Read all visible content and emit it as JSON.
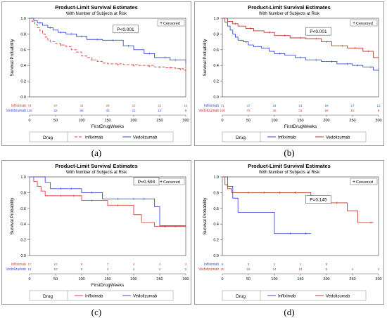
{
  "chart_data": [
    {
      "panel": "a",
      "caption": "(a)",
      "type": "line",
      "title": "Product-Limit Survival Estimates",
      "subtitle": "With Number of Subjects at Risk",
      "xlabel": "FirstDrugWeeks",
      "ylabel": "Survival Probability",
      "xlim": [
        0,
        300
      ],
      "ylim": [
        0,
        1.0
      ],
      "xticks": [
        0,
        50,
        100,
        150,
        200,
        250,
        300
      ],
      "yticks": [
        0,
        0.2,
        0.4,
        0.6,
        0.8,
        1.0
      ],
      "legend_box": "Censored",
      "pvalue": "P<0.001",
      "pvalue_pos": [
        160,
        0.85
      ],
      "group_label": "Drug",
      "risk_times": [
        0,
        50,
        100,
        150,
        200,
        250,
        300
      ],
      "series": [
        {
          "name": "Infliximab",
          "color": "#e0413a",
          "dash": "4,2",
          "steps": [
            [
              0,
              1.0
            ],
            [
              5,
              0.96
            ],
            [
              10,
              0.92
            ],
            [
              15,
              0.88
            ],
            [
              20,
              0.84
            ],
            [
              25,
              0.8
            ],
            [
              30,
              0.76
            ],
            [
              35,
              0.72
            ],
            [
              40,
              0.7
            ],
            [
              50,
              0.68
            ],
            [
              60,
              0.66
            ],
            [
              70,
              0.64
            ],
            [
              80,
              0.6
            ],
            [
              90,
              0.57
            ],
            [
              100,
              0.52
            ],
            [
              110,
              0.5
            ],
            [
              120,
              0.47
            ],
            [
              130,
              0.45
            ],
            [
              140,
              0.43
            ],
            [
              150,
              0.42
            ],
            [
              180,
              0.41
            ],
            [
              210,
              0.4
            ],
            [
              240,
              0.38
            ],
            [
              260,
              0.37
            ],
            [
              280,
              0.36
            ],
            [
              295,
              0.34
            ],
            [
              300,
              0.3
            ]
          ],
          "censor": [
            [
              60,
              0.66
            ],
            [
              120,
              0.47
            ],
            [
              170,
              0.41
            ],
            [
              200,
              0.4
            ],
            [
              230,
              0.39
            ],
            [
              250,
              0.38
            ],
            [
              270,
              0.37
            ],
            [
              290,
              0.35
            ]
          ],
          "risk": [
            "74",
            "57",
            "42",
            "29",
            "22",
            "21",
            "14"
          ]
        },
        {
          "name": "Vedolizumab",
          "color": "#3b4fd8",
          "dash": "",
          "steps": [
            [
              0,
              1.0
            ],
            [
              8,
              0.97
            ],
            [
              15,
              0.94
            ],
            [
              25,
              0.91
            ],
            [
              35,
              0.88
            ],
            [
              45,
              0.85
            ],
            [
              55,
              0.82
            ],
            [
              70,
              0.8
            ],
            [
              90,
              0.77
            ],
            [
              110,
              0.73
            ],
            [
              140,
              0.72
            ],
            [
              180,
              0.65
            ],
            [
              200,
              0.6
            ],
            [
              220,
              0.55
            ],
            [
              240,
              0.5
            ],
            [
              270,
              0.47
            ],
            [
              300,
              0.43
            ]
          ],
          "censor": [
            [
              20,
              0.94
            ],
            [
              40,
              0.88
            ],
            [
              60,
              0.82
            ],
            [
              80,
              0.8
            ],
            [
              100,
              0.77
            ],
            [
              130,
              0.73
            ],
            [
              160,
              0.72
            ],
            [
              190,
              0.65
            ],
            [
              230,
              0.55
            ],
            [
              260,
              0.5
            ],
            [
              280,
              0.47
            ]
          ],
          "risk": [
            "125",
            "82",
            "56",
            "35",
            "22",
            "12",
            "8"
          ]
        }
      ]
    },
    {
      "panel": "b",
      "caption": "(b)",
      "type": "line",
      "title": "Product-Limit Survival Estimates",
      "subtitle": "With Number of Subjects at Risk",
      "xlabel": "FirstDrugWeeks",
      "ylabel": "Survival Probability",
      "xlim": [
        0,
        300
      ],
      "ylim": [
        0,
        1.0
      ],
      "xticks": [
        0,
        50,
        100,
        150,
        200,
        250,
        300
      ],
      "yticks": [
        0,
        0.2,
        0.4,
        0.6,
        0.8,
        1.0
      ],
      "legend_box": "Censored",
      "pvalue": "P<0.001",
      "pvalue_pos": [
        160,
        0.82
      ],
      "group_label": "Drug",
      "risk_times": [
        0,
        50,
        100,
        150,
        200,
        250,
        300
      ],
      "series": [
        {
          "name": "Infliximab",
          "color": "#3b4fd8",
          "dash": "",
          "steps": [
            [
              0,
              1.0
            ],
            [
              5,
              0.95
            ],
            [
              10,
              0.9
            ],
            [
              15,
              0.85
            ],
            [
              20,
              0.8
            ],
            [
              25,
              0.76
            ],
            [
              30,
              0.72
            ],
            [
              40,
              0.7
            ],
            [
              50,
              0.66
            ],
            [
              60,
              0.64
            ],
            [
              75,
              0.62
            ],
            [
              90,
              0.58
            ],
            [
              100,
              0.55
            ],
            [
              120,
              0.53
            ],
            [
              140,
              0.5
            ],
            [
              160,
              0.47
            ],
            [
              190,
              0.45
            ],
            [
              220,
              0.42
            ],
            [
              250,
              0.4
            ],
            [
              270,
              0.38
            ],
            [
              290,
              0.34
            ],
            [
              300,
              0.33
            ]
          ],
          "censor": [
            [
              45,
              0.7
            ],
            [
              110,
              0.55
            ],
            [
              150,
              0.5
            ],
            [
              180,
              0.47
            ],
            [
              210,
              0.45
            ],
            [
              240,
              0.42
            ],
            [
              260,
              0.4
            ],
            [
              285,
              0.38
            ]
          ],
          "risk": [
            "71",
            "47",
            "34",
            "21",
            "19",
            "17",
            "13"
          ]
        },
        {
          "name": "Vedolizumab",
          "color": "#c0392b",
          "dash": "",
          "steps": [
            [
              0,
              1.0
            ],
            [
              10,
              0.96
            ],
            [
              20,
              0.93
            ],
            [
              30,
              0.9
            ],
            [
              45,
              0.87
            ],
            [
              60,
              0.84
            ],
            [
              80,
              0.82
            ],
            [
              100,
              0.78
            ],
            [
              130,
              0.75
            ],
            [
              160,
              0.74
            ],
            [
              190,
              0.7
            ],
            [
              210,
              0.65
            ],
            [
              240,
              0.62
            ],
            [
              270,
              0.58
            ],
            [
              290,
              0.5
            ],
            [
              300,
              0.5
            ]
          ],
          "censor": [
            [
              25,
              0.93
            ],
            [
              55,
              0.87
            ],
            [
              90,
              0.82
            ],
            [
              120,
              0.78
            ],
            [
              150,
              0.75
            ],
            [
              180,
              0.74
            ],
            [
              200,
              0.7
            ],
            [
              230,
              0.65
            ],
            [
              255,
              0.62
            ],
            [
              280,
              0.58
            ]
          ],
          "risk": [
            "109",
            "72",
            "45",
            "31",
            "18",
            "16",
            "8"
          ]
        }
      ]
    },
    {
      "panel": "c",
      "caption": "(c)",
      "type": "line",
      "title": "Product-Limit Survival Estimates",
      "subtitle": "With Number of Subjects at Risk",
      "xlabel": "FirstDrugWeeks",
      "ylabel": "Survival Probability",
      "xlim": [
        0,
        300
      ],
      "ylim": [
        0,
        1.0
      ],
      "xticks": [
        0,
        50,
        100,
        150,
        200,
        250,
        300
      ],
      "yticks": [
        0,
        0.2,
        0.4,
        0.6,
        0.8,
        1.0
      ],
      "legend_box": "Censored",
      "pvalue": "P=0.593",
      "pvalue_pos": [
        200,
        0.93
      ],
      "group_label": "Drug",
      "risk_times": [
        0,
        50,
        100,
        150,
        200,
        250,
        300
      ],
      "series": [
        {
          "name": "Infliximab",
          "color": "#e0413a",
          "dash": "",
          "steps": [
            [
              0,
              1.0
            ],
            [
              8,
              0.94
            ],
            [
              15,
              0.88
            ],
            [
              22,
              0.82
            ],
            [
              30,
              0.76
            ],
            [
              100,
              0.7
            ],
            [
              150,
              0.64
            ],
            [
              200,
              0.52
            ],
            [
              215,
              0.42
            ],
            [
              240,
              0.37
            ],
            [
              300,
              0.35
            ]
          ],
          "censor": [
            [
              60,
              0.76
            ],
            [
              85,
              0.76
            ],
            [
              120,
              0.7
            ],
            [
              170,
              0.64
            ],
            [
              260,
              0.37
            ],
            [
              280,
              0.37
            ]
          ],
          "risk": [
            "17",
            "10",
            "8",
            "7",
            "4",
            "4",
            "3"
          ]
        },
        {
          "name": "Vedolizumab",
          "color": "#3b4fd8",
          "dash": "",
          "steps": [
            [
              0,
              1.0
            ],
            [
              30,
              0.93
            ],
            [
              40,
              0.85
            ],
            [
              100,
              0.8
            ],
            [
              140,
              0.72
            ],
            [
              240,
              0.62
            ],
            [
              250,
              0.38
            ],
            [
              300,
              0.38
            ]
          ],
          "censor": [
            [
              60,
              0.85
            ],
            [
              80,
              0.85
            ],
            [
              120,
              0.8
            ],
            [
              170,
              0.72
            ],
            [
              200,
              0.72
            ],
            [
              220,
              0.72
            ]
          ],
          "risk": [
            "14",
            "10",
            "5",
            "4",
            "4",
            "2",
            "2"
          ]
        }
      ]
    },
    {
      "panel": "d",
      "caption": "(d)",
      "type": "line",
      "title": "Product-Limit Survival Estimates",
      "subtitle": "With Number of Subjects at Risk",
      "xlabel": "",
      "ylabel": "Survival Probability",
      "xlim": [
        0,
        300
      ],
      "ylim": [
        0,
        1.0
      ],
      "xticks": [
        0,
        50,
        100,
        150,
        200,
        250,
        300
      ],
      "yticks": [
        0,
        0.2,
        0.4,
        0.6,
        0.8,
        1.0
      ],
      "legend_box": "Censored",
      "pvalue": "P=0.145",
      "pvalue_pos": [
        160,
        0.7
      ],
      "group_label": "Drug",
      "risk_times": [
        0,
        50,
        100,
        150,
        200,
        250,
        300
      ],
      "series": [
        {
          "name": "Infliximab",
          "color": "#3b4fd8",
          "dash": "",
          "steps": [
            [
              0,
              1.0
            ],
            [
              10,
              0.88
            ],
            [
              20,
              0.73
            ],
            [
              30,
              0.55
            ],
            [
              100,
              0.28
            ],
            [
              170,
              0.28
            ]
          ],
          "censor": [
            [
              130,
              0.28
            ],
            [
              160,
              0.28
            ]
          ],
          "risk": [
            "6",
            "3",
            "1",
            "1",
            "0",
            "",
            ""
          ]
        },
        {
          "name": "Vedolizumab",
          "color": "#c0392b",
          "dash": "",
          "steps": [
            [
              0,
              1.0
            ],
            [
              5,
              0.9
            ],
            [
              10,
              0.85
            ],
            [
              18,
              0.8
            ],
            [
              170,
              0.67
            ],
            [
              240,
              0.57
            ],
            [
              260,
              0.42
            ],
            [
              290,
              0.42
            ]
          ],
          "censor": [
            [
              50,
              0.8
            ],
            [
              80,
              0.8
            ],
            [
              110,
              0.8
            ],
            [
              140,
              0.8
            ],
            [
              200,
              0.67
            ],
            [
              220,
              0.67
            ],
            [
              285,
              0.42
            ]
          ],
          "risk": [
            "20",
            "16",
            "14",
            "12",
            "5",
            "4",
            "2"
          ]
        }
      ]
    }
  ]
}
